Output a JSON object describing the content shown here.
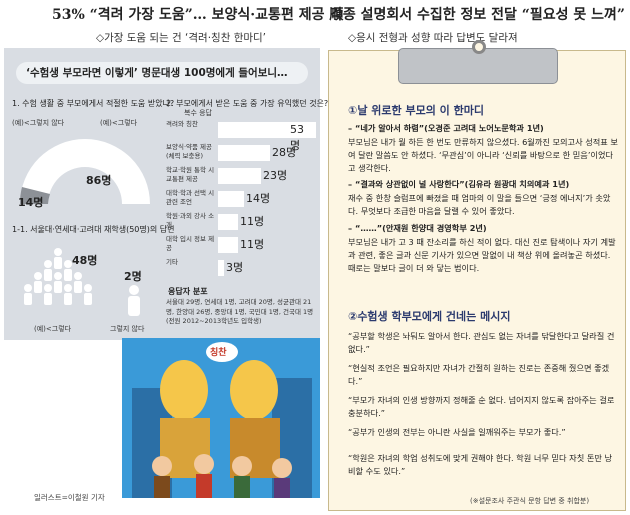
{
  "headline": {
    "left": "53% “격려 가장 도움”… 보양식·교통편 제공 順",
    "right": "각종 설명회서 수집한 정보 전달 “필요성 못 느껴”"
  },
  "subhead": {
    "left": "◇가장 도움 되는 건 ‘격려·칭찬 한마디’",
    "right": "◇응시 전형과 성향 따라 답변도 달라져"
  },
  "survey": {
    "title": "‘수험생 부모라면 이렇게’ 명문대생 100명에게 들어보니…",
    "q1": "1. 수험 생활 중 부모에게서 적절한 도움 받았나?",
    "q1_yes": "(예)<그렇다",
    "q1_no": "(예)<그렇지 않다",
    "q1_yes_value": "86명",
    "q1_no_value": "14명",
    "q1_1": "1-1. 서울대·연세대·고려대 재학생(50명)의 답변",
    "q1_1_yes_value": "48명",
    "q1_1_no_value": "2명",
    "q1_1_yes_label": "(예)<그렇다",
    "q1_1_no_label": "그렇지 않다",
    "q2": "2. 부모에게서 받은 도움 중 가장 유익했던 것은?",
    "q2_note": "복수 응답",
    "q2_items": [
      {
        "label": "격려와 칭찬",
        "value": "53명",
        "num": 53
      },
      {
        "label": "보양식·약품 제공 (체력 보충용)",
        "value": "28명",
        "num": 28
      },
      {
        "label": "학교·학원 통학 시 교통편 제공",
        "value": "23명",
        "num": 23
      },
      {
        "label": "대학·학과 선택 시 관련 조언",
        "value": "14명",
        "num": 14
      },
      {
        "label": "학원·과외 강사 소개",
        "value": "11명",
        "num": 11
      },
      {
        "label": "대학 입시 정보 제공",
        "value": "11명",
        "num": 11
      },
      {
        "label": "기타",
        "value": "3명",
        "num": 3
      }
    ],
    "dist_title": "응답자 분포",
    "dist_text": "서울대 29명, 연세대 1명, 고려대 20명, 성균관대 21명, 한양대 26명, 중앙대 1명, 국민대 1명, 건국대 1명 (전원 2012~2013학년도 입학생)"
  },
  "illustration": {
    "credit": "일러스트=이철원 기자",
    "speech": "칭찬"
  },
  "right_panel": {
    "sec1": "①날 위로한 부모의 이 한마디",
    "sec1_items": [
      {
        "head": "– “네가 알아서 하렴”(오경준 고려대 노어노문학과 1년)",
        "body": "부모님은 내가 뭘 하든 한 번도 만류하지 않으셨다. 6월까진 모의고사 성적표 보여 달란 말씀도 안 하셨다. ‘무관심’이 아니라 ‘신뢰를 바탕으로 한 믿음’이었다고 생각한다."
      },
      {
        "head": "– “결과와 상관없이 널 사랑한다”(김유라 원광대 치의예과 1년)",
        "body": "재수 중 한창 슬럼프에 빠졌을 때 엄마의 이 말을 들으면 ‘긍정 에너지’가 솟았다. 무엇보다 조급한 마음을 달랠 수 있어 좋았다."
      },
      {
        "head": "– “……”(안재원 한양대 경영학부 2년)",
        "body": "부모님은 내가 고 3 때 잔소리를 하신 적이 없다. 대신 진로 탐색이나 자기 계발과 관련, 좋은 글과 신문 기사가 있으면 말없이 내 책상 위에 올려놓곤 하셨다. 때로는 말보다 글이 더 와 닿는 법이다."
      }
    ],
    "sec2": "②수험생 학부모에게 건네는 메시지",
    "sec2_items": [
      "“공부할 학생은 놔둬도 알아서 한다. 관심도 없는 자녀를 닦달한다고 달라질 건 없다.”",
      "“현실적 조언은 필요하지만 자녀가 간절히 원하는 진로는 존중해 줬으면 좋겠다.”",
      "“부모가 자녀의 인생 방향까지 정해줄 순 없다. 넘어지지 않도록 잡아주는 걸로 충분하다.”",
      "“공부가 인생의 전부는 아니란 사실을 일깨워주는 부모가 좋다.”",
      "“학원은 자녀의 학업 성취도에 맞게 권해야 한다. 학원 너무 믿다 자칫 돈만 낭비할 수도 있다.”"
    ],
    "note": "(※설문조사 주관식 문항 답변 중 취합분)"
  }
}
